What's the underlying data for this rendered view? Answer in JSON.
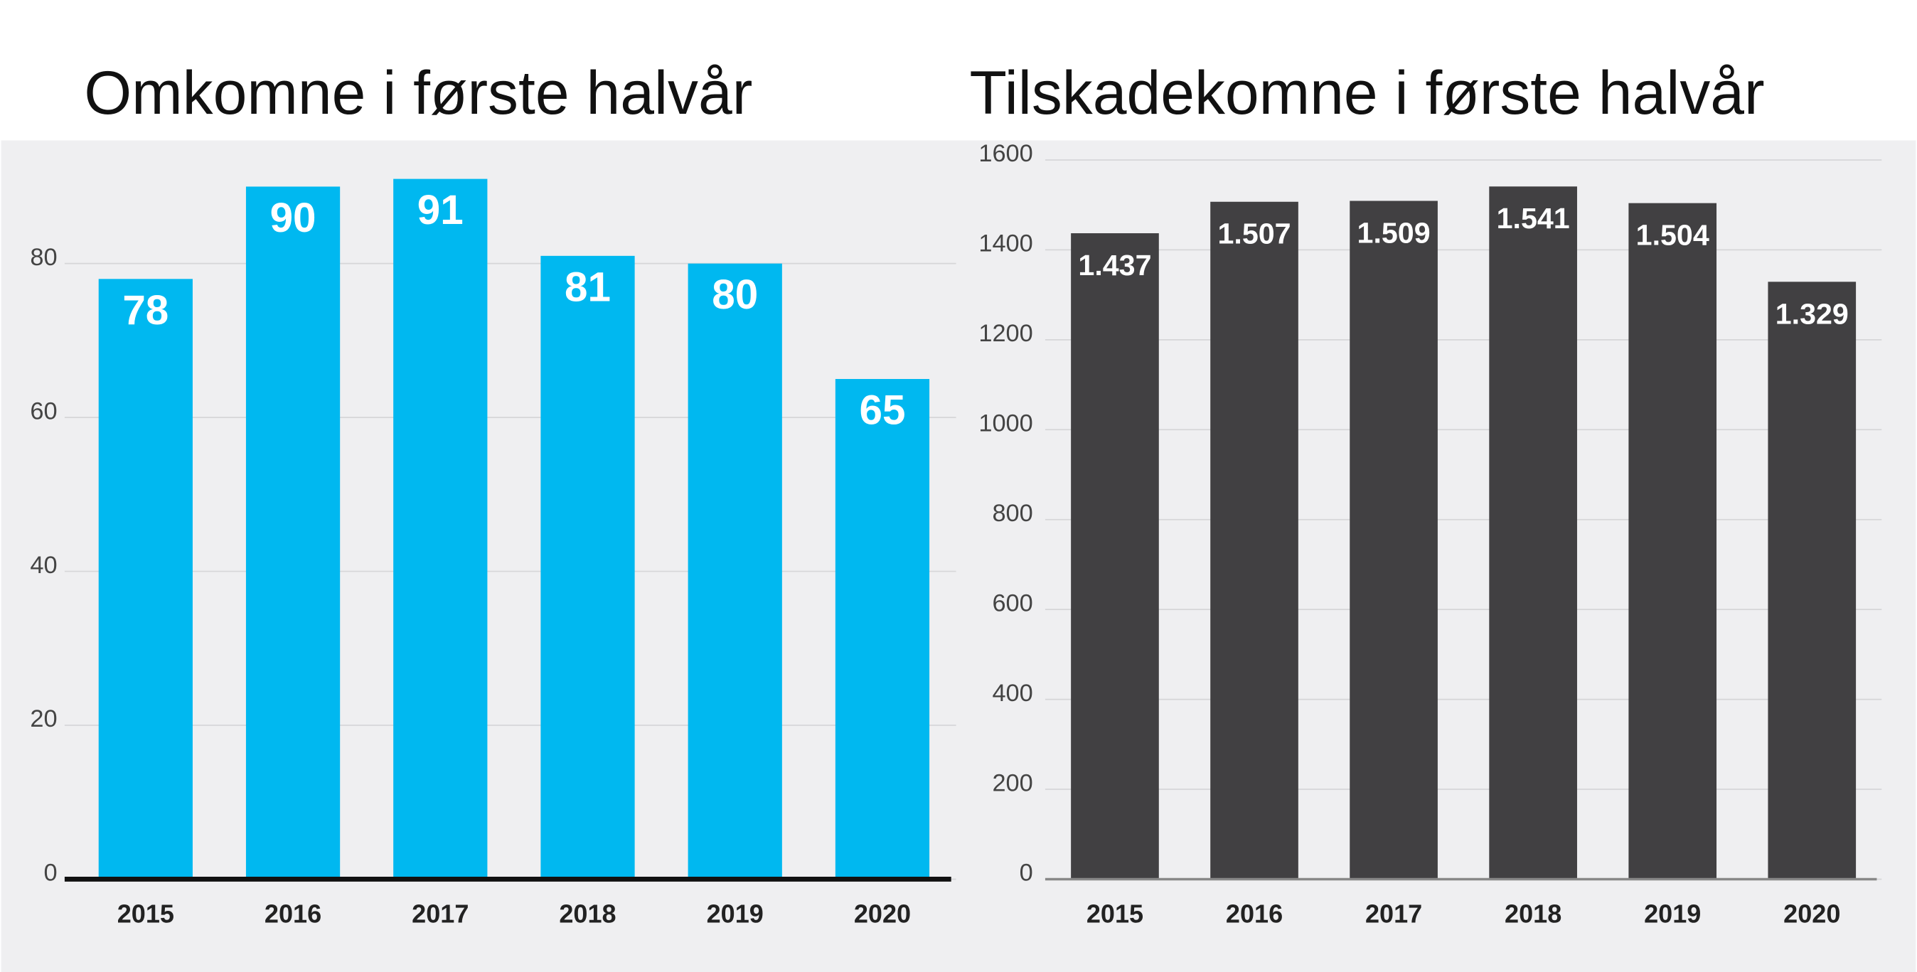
{
  "chart_data": [
    {
      "type": "bar",
      "title": "Omkomne i første halvår",
      "categories": [
        "2015",
        "2016",
        "2017",
        "2018",
        "2019",
        "2020"
      ],
      "values": [
        78,
        90,
        91,
        81,
        80,
        65
      ],
      "color": "#00b8f0",
      "ylim": [
        0,
        96
      ],
      "yticks": [
        0,
        20,
        40,
        60,
        80
      ],
      "grid": true
    },
    {
      "type": "bar",
      "title": "Tilskadekomne i første halvår",
      "categories": [
        "2015",
        "2016",
        "2017",
        "2018",
        "2019",
        "2020"
      ],
      "values": [
        1437,
        1507,
        1509,
        1541,
        1504,
        1329
      ],
      "value_labels": [
        "1.437",
        "1.507",
        "1.509",
        "1.541",
        "1.504",
        "1.329"
      ],
      "color": "#414042",
      "ylim": [
        0,
        1600
      ],
      "yticks": [
        0,
        200,
        400,
        600,
        800,
        1000,
        1200,
        1400,
        1600
      ],
      "grid": true
    }
  ]
}
